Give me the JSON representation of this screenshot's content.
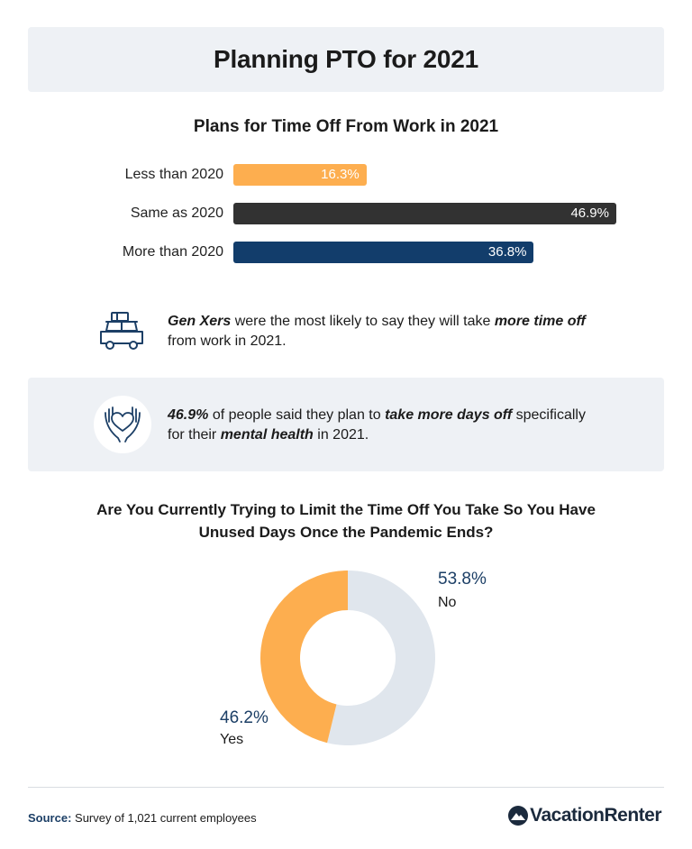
{
  "header": {
    "title": "Planning PTO for 2021"
  },
  "facts": [
    {
      "parts": [
        {
          "text": "Gen Xers",
          "em": true
        },
        {
          "text": " were the most likely to say they will take ",
          "em": false
        },
        {
          "text": "more time off",
          "em": true
        },
        {
          "text": " from work in 2021.",
          "em": false
        }
      ],
      "icon": "car-with-luggage-icon"
    },
    {
      "parts": [
        {
          "text": "46.9%",
          "em": true
        },
        {
          "text": " of people said they plan to ",
          "em": false
        },
        {
          "text": "take more days off",
          "em": true
        },
        {
          "text": " specifically for their ",
          "em": false
        },
        {
          "text": "mental health",
          "em": true
        },
        {
          "text": " in 2021.",
          "em": false
        }
      ],
      "icon": "hands-holding-heart-icon"
    }
  ],
  "chart_data": [
    {
      "type": "bar",
      "orientation": "horizontal",
      "title": "Plans for Time Off From Work in 2021",
      "categories": [
        "Less than 2020",
        "Same as 2020",
        "More than 2020"
      ],
      "values": [
        16.3,
        46.9,
        36.8
      ],
      "value_labels": [
        "16.3%",
        "46.9%",
        "36.8%"
      ],
      "colors": [
        "#fdae4f",
        "#323232",
        "#123d6b"
      ],
      "xlim": [
        0,
        46.9
      ],
      "grid": false
    },
    {
      "type": "pie",
      "style": "donut",
      "title_lines": [
        "Are You Currently Trying to Limit the Time Off You Take So You Have",
        "Unused Days Once the Pandemic Ends?"
      ],
      "slices": [
        {
          "label": "No",
          "value": 53.8,
          "value_label": "53.8%",
          "color": "#e0e6ed"
        },
        {
          "label": "Yes",
          "value": 46.2,
          "value_label": "46.2%",
          "color": "#fdae4f"
        }
      ]
    }
  ],
  "footer": {
    "source_key": "Source:",
    "source_text": "Survey of 1,021 current employees",
    "brand": "VacationRenter"
  }
}
